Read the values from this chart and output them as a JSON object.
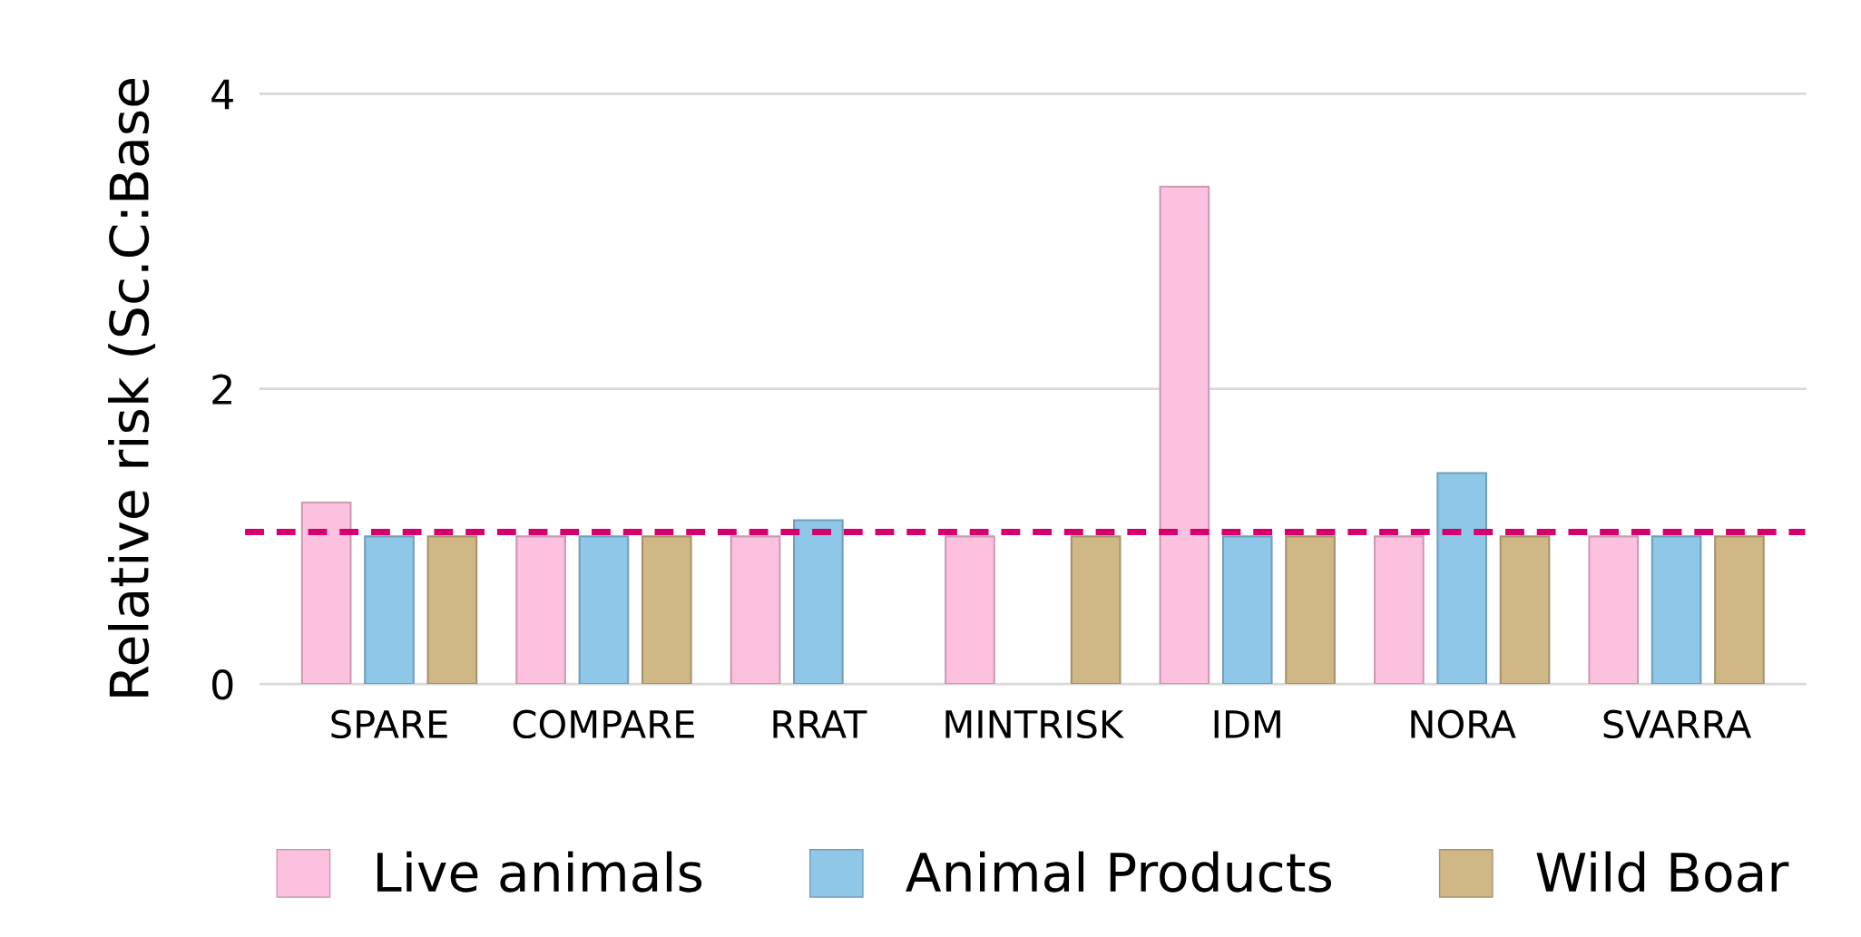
{
  "chart_data": {
    "type": "bar",
    "ylabel": "Relative risk (Sc.C:Base",
    "categories": [
      "SPARE",
      "COMPARE",
      "RRAT",
      "MINTRISK",
      "IDM",
      "NORA",
      "SVARRA"
    ],
    "series": [
      {
        "name": "Live animals",
        "color": "#fdc1e0",
        "values": [
          1.23,
          1.0,
          1.0,
          1.0,
          3.37,
          1.0,
          1.0
        ]
      },
      {
        "name": "Animal Products",
        "color": "#8ec7e8",
        "values": [
          1.0,
          1.0,
          1.11,
          null,
          1.0,
          1.43,
          1.0
        ]
      },
      {
        "name": "Wild Boar",
        "color": "#cfb886",
        "values": [
          1.0,
          1.0,
          null,
          1.0,
          1.0,
          1.0,
          1.0
        ]
      }
    ],
    "ylim": [
      0,
      4
    ],
    "yticks": [
      0,
      2,
      4
    ],
    "grid": "y",
    "legend": "bottom",
    "ref_lines": [
      {
        "axis": "y",
        "value": 1.03,
        "label": null,
        "color": "#d4006e",
        "line_style": "dashed"
      }
    ]
  }
}
